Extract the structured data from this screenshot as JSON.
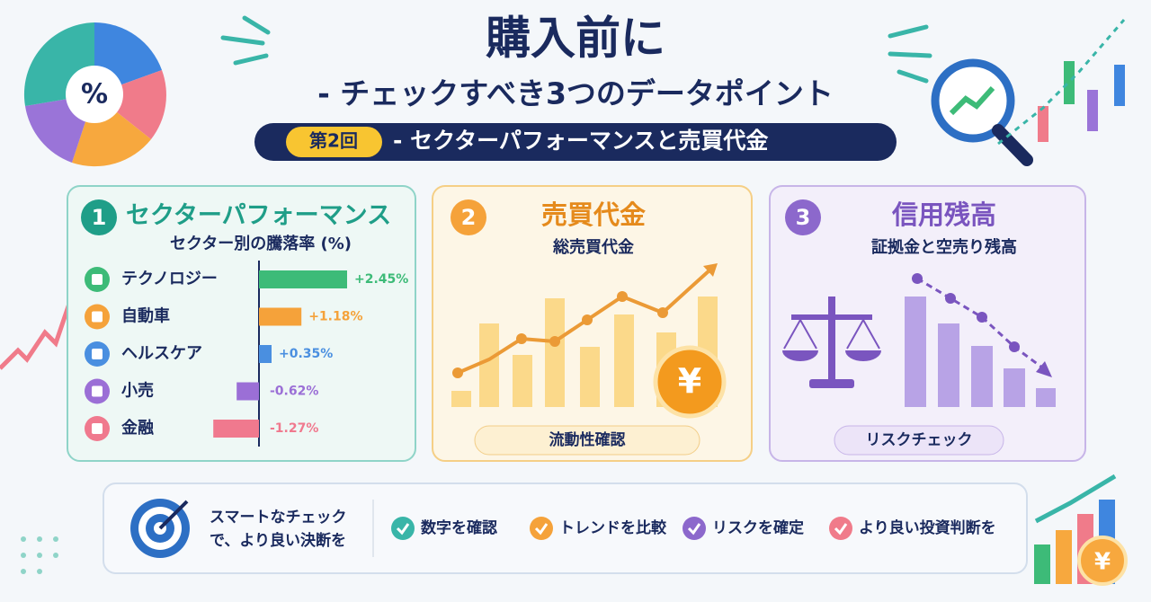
{
  "header": {
    "title": "購入前に",
    "subtitle": "- チェックすべき3つのデータポイント",
    "badge": "第2回",
    "series_title": "- セクターパフォーマンスと売買代金",
    "icon": "%"
  },
  "panels": [
    {
      "number": "1",
      "title": "セクターパフォーマンス",
      "subtitle": "セクター別の騰落率 (%)",
      "chart": {
        "type": "bar",
        "orientation": "horizontal",
        "categories": [
          "テクノロジー",
          "自動車",
          "ヘルスケア",
          "小売",
          "金融"
        ],
        "values": [
          2.45,
          1.18,
          0.35,
          -0.62,
          -1.27
        ],
        "value_labels": [
          "+2.45%",
          "+1.18%",
          "+0.35%",
          "-0.62%",
          "-1.27%"
        ],
        "colors": [
          "#3dbb78",
          "#f5a23a",
          "#4a8fe0",
          "#9b6fd6",
          "#f0798e"
        ]
      }
    },
    {
      "number": "2",
      "title": "売買代金",
      "subtitle": "総売買代金",
      "icon": "¥",
      "button": "流動性確認"
    },
    {
      "number": "3",
      "title": "信用残高",
      "subtitle": "証拠金と空売り残高",
      "button": "リスクチェック"
    }
  ],
  "footer": {
    "lead": [
      "スマートなチェック",
      "で、より良い決断を"
    ],
    "items": [
      "数字を確認",
      "トレンドを比較",
      "リスクを確定",
      "より良い投資判断を"
    ]
  }
}
